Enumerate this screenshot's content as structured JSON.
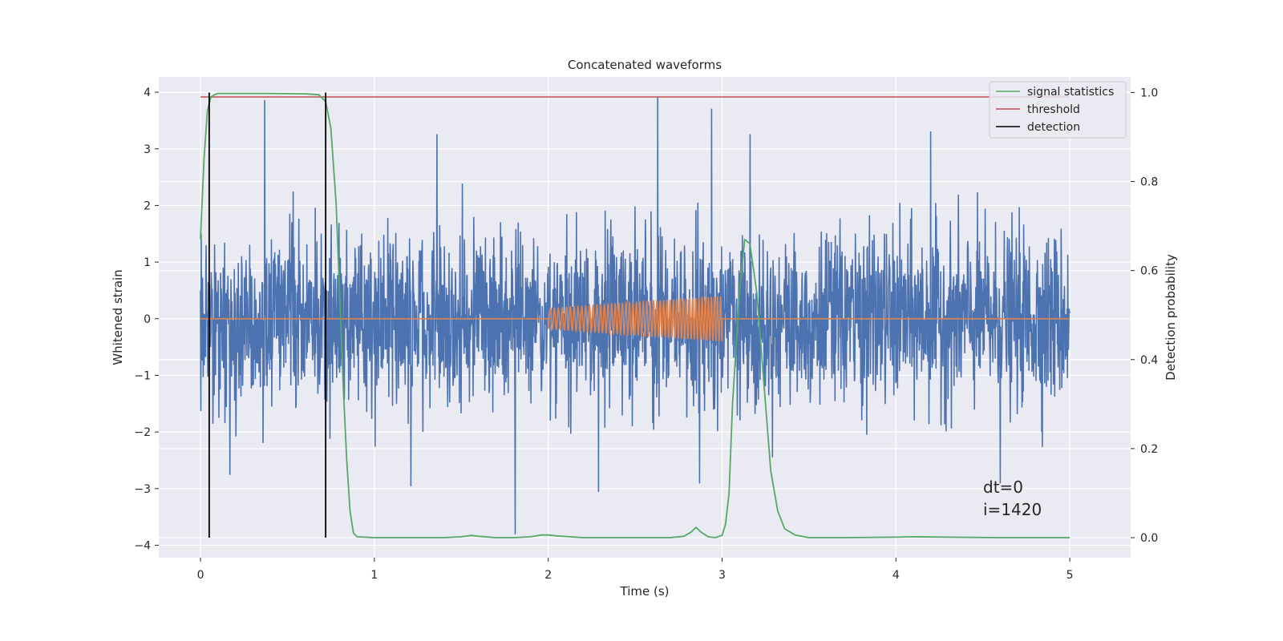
{
  "chart_data": {
    "type": "line",
    "title": "Concatenated waveforms",
    "xlabel": "Time (s)",
    "ylabel": "Whitened strain",
    "y2label": "Detection probability",
    "xlim": [
      -0.24,
      5.35
    ],
    "ylim": [
      -4.22,
      4.27
    ],
    "y2lim": [
      -0.045,
      1.035
    ],
    "xticks": [
      0,
      1,
      2,
      3,
      4,
      5
    ],
    "yticks": [
      -4,
      -3,
      -2,
      -1,
      0,
      1,
      2,
      3,
      4
    ],
    "y2ticks": [
      0.0,
      0.2,
      0.4,
      0.6,
      0.8,
      1.0
    ],
    "grid": true,
    "legend_position": "top-right",
    "colors": {
      "noise": "#4c72b0",
      "injection": "#dd8452",
      "signal": "#55a868",
      "threshold": "#c44e52",
      "detection": "#000000",
      "background": "#eaeaf2",
      "grid": "#ffffff"
    },
    "series": [
      {
        "name": "",
        "role": "whitened-noise",
        "axis": "left",
        "x_range": [
          0,
          5
        ],
        "approx_std": 0.75,
        "peaks_max": [
          [
            0.37,
            3.85
          ],
          [
            1.36,
            3.25
          ],
          [
            2.63,
            3.9
          ],
          [
            2.94,
            3.7
          ],
          [
            3.16,
            3.25
          ],
          [
            4.2,
            3.3
          ]
        ],
        "peaks_min": [
          [
            0.17,
            -2.75
          ],
          [
            1.21,
            -2.95
          ],
          [
            1.81,
            -3.8
          ],
          [
            2.29,
            -3.05
          ],
          [
            2.87,
            -2.9
          ],
          [
            4.6,
            -2.9
          ]
        ]
      },
      {
        "name": "",
        "role": "injected-chirp",
        "axis": "left",
        "x_start": 2.0,
        "x_end": 3.0,
        "amplitude_start": 0.18,
        "amplitude_end": 0.4,
        "cycles": 50
      },
      {
        "name": "signal statistics",
        "axis": "right",
        "x": [
          0.0,
          0.02,
          0.04,
          0.06,
          0.08,
          0.1,
          0.2,
          0.4,
          0.6,
          0.68,
          0.72,
          0.75,
          0.78,
          0.8,
          0.82,
          0.84,
          0.86,
          0.88,
          0.9,
          1.0,
          1.4,
          1.5,
          1.56,
          1.6,
          1.7,
          1.8,
          1.9,
          1.96,
          2.0,
          2.05,
          2.2,
          2.5,
          2.7,
          2.78,
          2.82,
          2.85,
          2.88,
          2.92,
          2.96,
          3.0,
          3.02,
          3.04,
          3.06,
          3.1,
          3.13,
          3.16,
          3.2,
          3.24,
          3.28,
          3.32,
          3.36,
          3.42,
          3.5,
          3.7,
          4.0,
          4.1,
          4.3,
          4.6,
          4.8,
          5.0
        ],
        "y": [
          0.67,
          0.85,
          0.96,
          0.99,
          0.995,
          0.998,
          0.998,
          0.998,
          0.997,
          0.995,
          0.98,
          0.92,
          0.75,
          0.55,
          0.35,
          0.18,
          0.06,
          0.01,
          0.002,
          0.0,
          0.0,
          0.002,
          0.005,
          0.003,
          0.0,
          0.0,
          0.002,
          0.006,
          0.006,
          0.004,
          0.0,
          0.0,
          0.0,
          0.003,
          0.012,
          0.023,
          0.012,
          0.002,
          0.0,
          0.005,
          0.03,
          0.1,
          0.3,
          0.55,
          0.67,
          0.66,
          0.55,
          0.35,
          0.15,
          0.06,
          0.02,
          0.006,
          0.0,
          0.0,
          0.001,
          0.002,
          0.001,
          0.0,
          0.0,
          0.0
        ]
      },
      {
        "name": "threshold",
        "axis": "right",
        "x": [
          0,
          5
        ],
        "y": [
          0.99,
          0.99
        ]
      },
      {
        "name": "detection",
        "axis": "right",
        "vlines": [
          0.05,
          0.72
        ],
        "ymin": 0.0,
        "ymax": 1.0
      }
    ],
    "annotations": [
      "dt=0",
      "i=1420"
    ]
  }
}
